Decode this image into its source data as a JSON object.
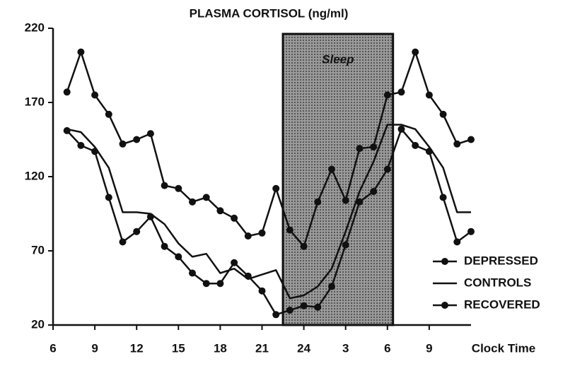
{
  "chart_data": {
    "type": "line",
    "title": "PLASMA CORTISOL (ng/ml)",
    "x_label": "Clock Time",
    "annotations": [
      {
        "text": "Sleep",
        "x_range": [
          22.5,
          30.4
        ]
      }
    ],
    "x": [
      7,
      8,
      9,
      10,
      11,
      12,
      13,
      14,
      15,
      16,
      17,
      18,
      19,
      20,
      21,
      22,
      23,
      24,
      25,
      26,
      27,
      28,
      29,
      30,
      31,
      32,
      33,
      34,
      35,
      36
    ],
    "series": [
      {
        "name": "DEPRESSED",
        "color": "#111111",
        "markers": true,
        "values": [
          177,
          204,
          175,
          162,
          142,
          145,
          149,
          114,
          112,
          103,
          106,
          97,
          92,
          80,
          82,
          112,
          84,
          73,
          103,
          125,
          104,
          139,
          140,
          175,
          177,
          204,
          175,
          162,
          142,
          145
        ]
      },
      {
        "name": "CONTROLS",
        "color": "#111111",
        "markers": false,
        "values": [
          152,
          150,
          140,
          126,
          96,
          96,
          95,
          88,
          75,
          66,
          68,
          55,
          58,
          51,
          54,
          57,
          38,
          40,
          46,
          58,
          83,
          110,
          130,
          155,
          155,
          152,
          140,
          126,
          96,
          96
        ]
      },
      {
        "name": "RECOVERED",
        "color": "#111111",
        "markers": true,
        "values": [
          151,
          141,
          137,
          106,
          76,
          83,
          93,
          73,
          66,
          55,
          48,
          48,
          62,
          53,
          43,
          27,
          30,
          33,
          32,
          46,
          74,
          103,
          110,
          125,
          152,
          141,
          137,
          106,
          76,
          83
        ]
      }
    ],
    "xlim": [
      6,
      36
    ],
    "xticks": [
      6,
      9,
      12,
      15,
      18,
      21,
      24,
      {
        "value": 27,
        "label": "3"
      },
      {
        "value": 30,
        "label": "6"
      },
      {
        "value": 33,
        "label": "9"
      }
    ],
    "ylim": [
      20,
      220
    ],
    "yticks": [
      20,
      70,
      120,
      170,
      220
    ],
    "grid": false,
    "legend": "lower right"
  }
}
